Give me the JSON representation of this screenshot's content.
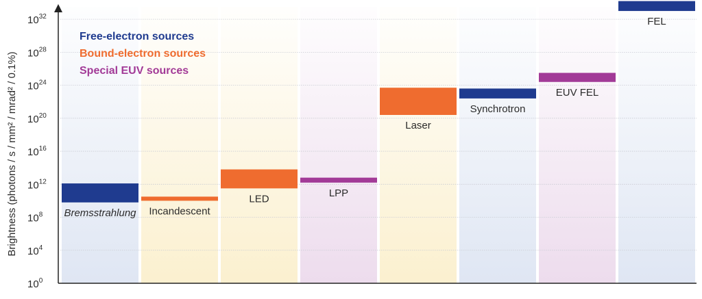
{
  "chart_data": {
    "type": "bar",
    "ylabel": "Brightness (photons / s / mm² / mrad² / 0.1%)",
    "yscale": "log",
    "ylim_exponent": [
      0,
      34
    ],
    "yticks": [
      {
        "base": "10",
        "exp": "0"
      },
      {
        "base": "10",
        "exp": "4"
      },
      {
        "base": "10",
        "exp": "8"
      },
      {
        "base": "10",
        "exp": "12"
      },
      {
        "base": "10",
        "exp": "16"
      },
      {
        "base": "10",
        "exp": "20"
      },
      {
        "base": "10",
        "exp": "24"
      },
      {
        "base": "10",
        "exp": "28"
      },
      {
        "base": "10",
        "exp": "32"
      }
    ],
    "grid": true,
    "legend_position": "top-left",
    "legend": [
      {
        "label": "Free-electron sources",
        "color": "#1f3b8f"
      },
      {
        "label": "Bound-electron sources",
        "color": "#ef6c2f"
      },
      {
        "label": "Special EUV sources",
        "color": "#a23a97"
      }
    ],
    "bars": [
      {
        "label": "Bremsstrahlung",
        "group": 0,
        "log_min": 9.8,
        "log_max": 12.1,
        "italic": true
      },
      {
        "label": "Incandescent",
        "group": 1,
        "log_min": 10.0,
        "log_max": 10.5,
        "italic": false
      },
      {
        "label": "LED",
        "group": 1,
        "log_min": 11.5,
        "log_max": 13.8,
        "italic": false
      },
      {
        "label": "LPP",
        "group": 2,
        "log_min": 12.2,
        "log_max": 12.8,
        "italic": false
      },
      {
        "label": "Laser",
        "group": 1,
        "log_min": 20.4,
        "log_max": 23.7,
        "italic": false
      },
      {
        "label": "Synchrotron",
        "group": 0,
        "log_min": 22.4,
        "log_max": 23.6,
        "italic": false
      },
      {
        "label": "EUV FEL",
        "group": 2,
        "log_min": 24.4,
        "log_max": 25.5,
        "italic": false
      },
      {
        "label": "FEL",
        "group": 0,
        "log_min": 33.0,
        "log_max": 34.2,
        "italic": false
      }
    ],
    "column_tints": [
      "#dfe6f3",
      "#fbf0cf",
      "#fbf0cf",
      "#eddced",
      "#fbf0cf",
      "#dfe6f3",
      "#eddced",
      "#dfe6f3"
    ]
  }
}
